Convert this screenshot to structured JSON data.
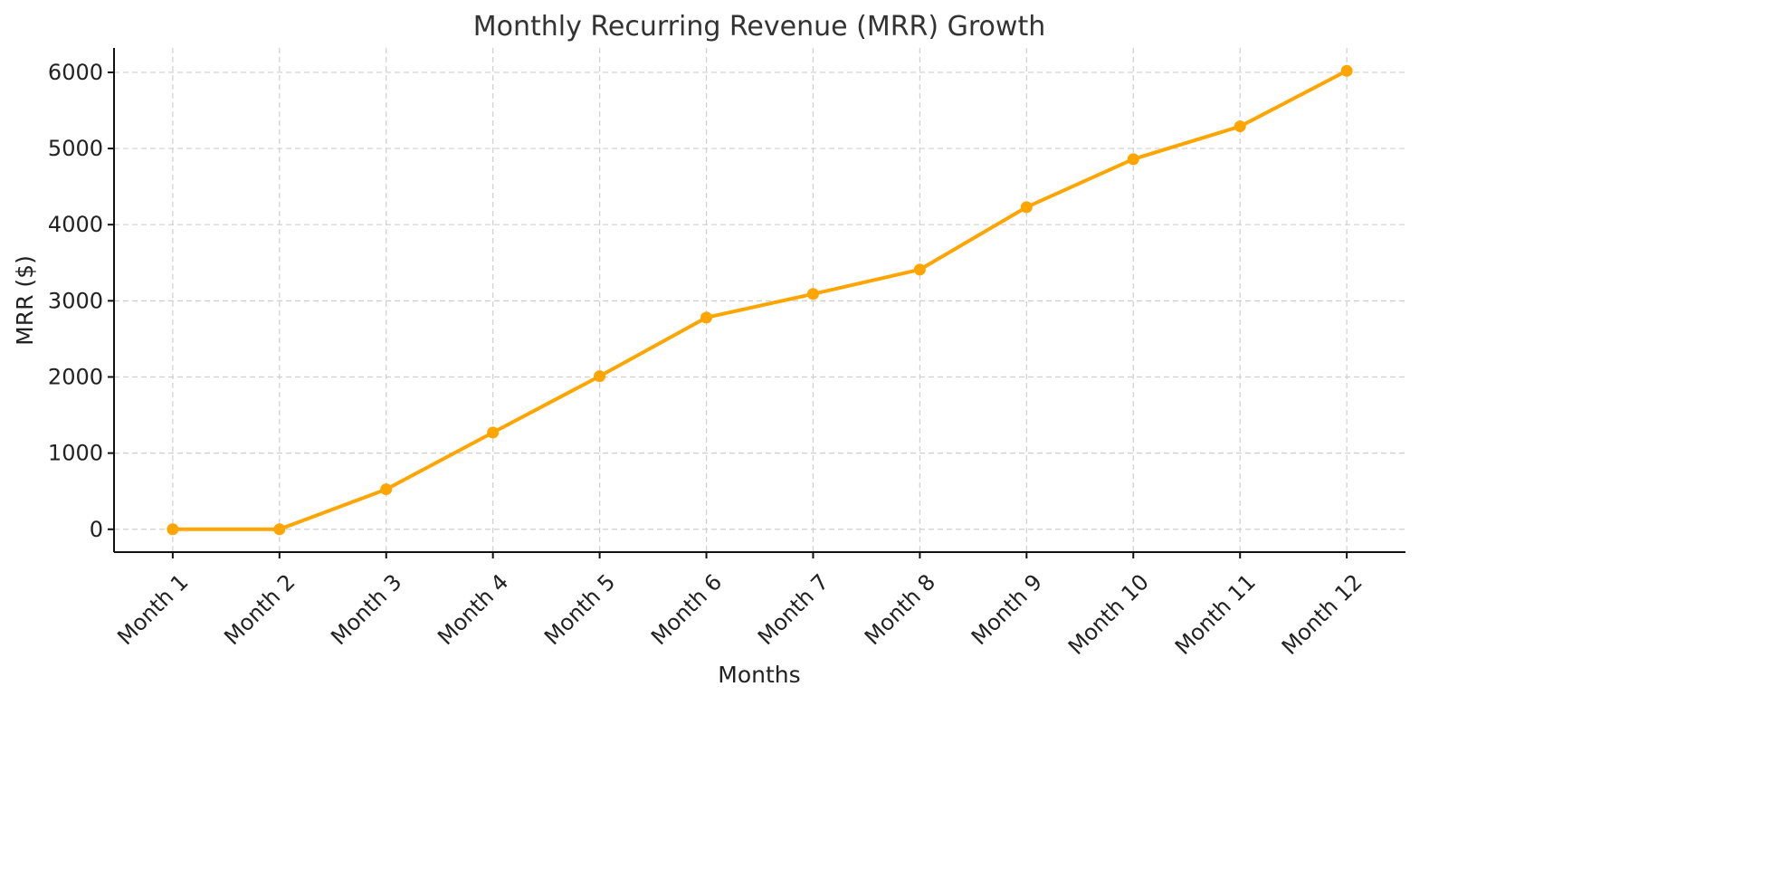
{
  "chart_data": {
    "type": "line",
    "title": "Monthly Recurring Revenue (MRR) Growth",
    "xlabel": "Months",
    "ylabel": "MRR ($)",
    "categories": [
      "Month 1",
      "Month 2",
      "Month 3",
      "Month 4",
      "Month 5",
      "Month 6",
      "Month 7",
      "Month 8",
      "Month 9",
      "Month 10",
      "Month 11",
      "Month 12"
    ],
    "series": [
      {
        "name": "MRR",
        "color": "#FFA500",
        "values": [
          0,
          0,
          525,
          1270,
          2010,
          2780,
          3090,
          3410,
          4230,
          4860,
          5290,
          6020
        ]
      }
    ],
    "yticks": [
      0,
      1000,
      2000,
      3000,
      4000,
      5000,
      6000
    ],
    "ylim": [
      -300,
      6320
    ],
    "grid": true,
    "legend": "none"
  }
}
